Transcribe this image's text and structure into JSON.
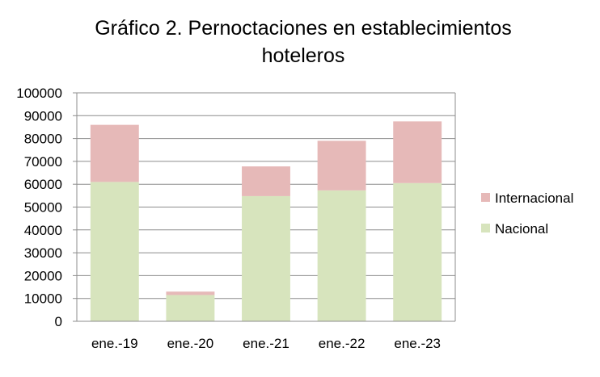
{
  "chart_data": {
    "type": "bar",
    "stacked": true,
    "title": "Gráfico 2. Pernoctaciones en establecimientos hoteleros",
    "title_lines": [
      "Gráfico 2. Pernoctaciones  en establecimientos",
      "hoteleros"
    ],
    "xlabel": "",
    "ylabel": "",
    "categories": [
      "ene.-19",
      "ene.-20",
      "ene.-21",
      "ene.-22",
      "ene.-23"
    ],
    "series": [
      {
        "name": "Nacional",
        "color": "#d7e4bd",
        "values": [
          61000,
          11500,
          54800,
          57300,
          60500
        ]
      },
      {
        "name": "Internacional",
        "color": "#e6b9b8",
        "values": [
          25000,
          1500,
          13000,
          21700,
          27000
        ]
      }
    ],
    "ylim": [
      0,
      100000
    ],
    "yticks": [
      "0",
      "10000",
      "20000",
      "30000",
      "40000",
      "50000",
      "60000",
      "70000",
      "80000",
      "90000",
      "100000"
    ],
    "grid": true,
    "legend_position": "right",
    "legend_order": [
      "Internacional",
      "Nacional"
    ]
  }
}
